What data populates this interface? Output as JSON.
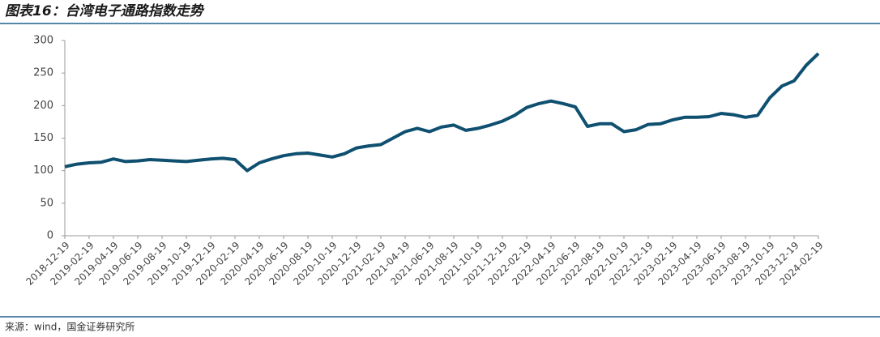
{
  "title": "图表16：台湾电子通路指数走势",
  "source": "来源：wind，国金证券研究所",
  "chart_data": {
    "type": "line",
    "color": "#0f5070",
    "categories": [
      "2018-12-19",
      null,
      "2019-02-19",
      null,
      "2019-04-19",
      null,
      "2019-06-19",
      null,
      "2019-08-19",
      null,
      "2019-10-19",
      null,
      "2019-12-19",
      null,
      "2020-02-19",
      null,
      "2020-04-19",
      null,
      "2020-06-19",
      null,
      "2020-08-19",
      null,
      "2020-10-19",
      null,
      "2020-12-19",
      null,
      "2021-02-19",
      null,
      "2021-04-19",
      null,
      "2021-06-19",
      null,
      "2021-08-19",
      null,
      "2021-10-19",
      null,
      "2021-12-19",
      null,
      "2022-02-19",
      null,
      "2022-04-19",
      null,
      "2022-06-19",
      null,
      "2022-08-19",
      null,
      "2022-10-19",
      null,
      "2022-12-19",
      null,
      "2023-02-19",
      null,
      "2023-04-19",
      null,
      "2023-06-19",
      null,
      "2023-08-19",
      null,
      "2023-10-19",
      null,
      "2023-12-19",
      null,
      "2024-02-19"
    ],
    "values": [
      106,
      110,
      112,
      113,
      118,
      114,
      115,
      117,
      116,
      115,
      114,
      116,
      118,
      119,
      117,
      100,
      112,
      118,
      123,
      126,
      127,
      124,
      121,
      126,
      135,
      138,
      140,
      150,
      160,
      165,
      160,
      167,
      170,
      162,
      165,
      170,
      176,
      185,
      197,
      203,
      207,
      203,
      198,
      168,
      172,
      172,
      160,
      163,
      171,
      172,
      178,
      182,
      182,
      183,
      188,
      186,
      182,
      185,
      212,
      230,
      238,
      262,
      280
    ],
    "ylim": [
      0,
      300
    ],
    "yticks": [
      0,
      50,
      100,
      150,
      200,
      250,
      300
    ]
  }
}
